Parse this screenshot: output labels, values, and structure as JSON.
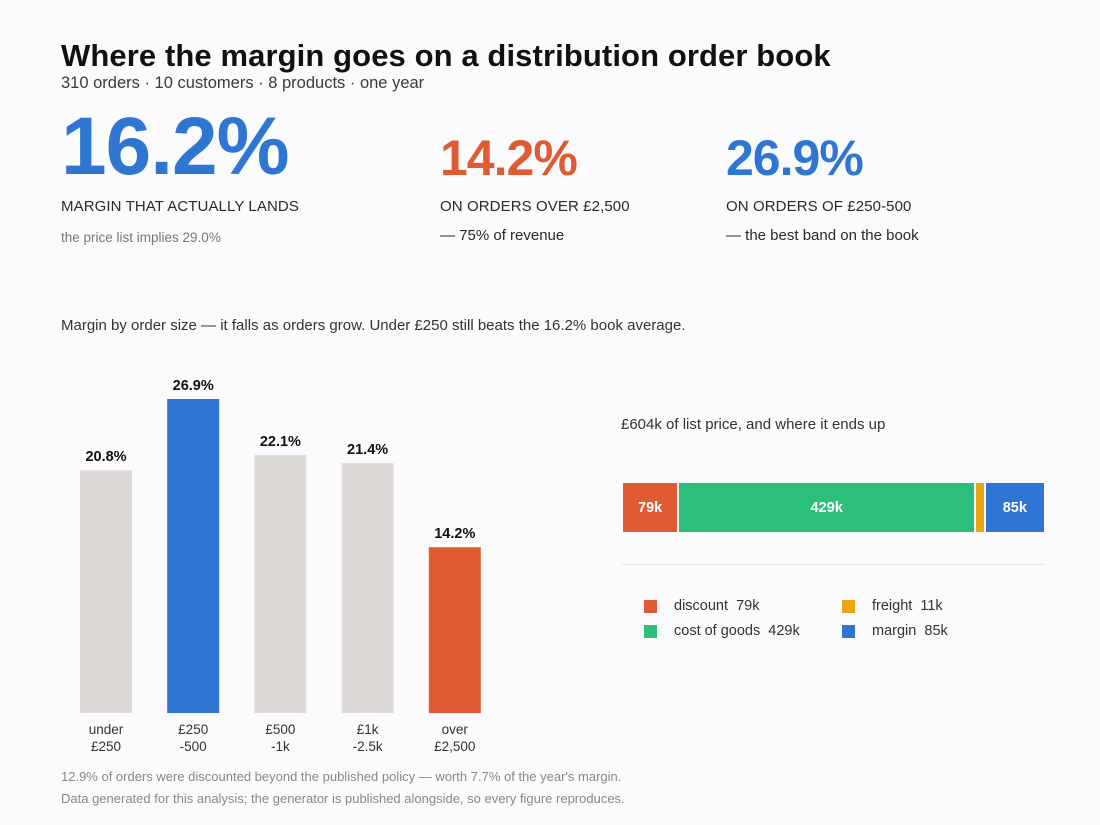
{
  "header": {
    "title": "Where the margin goes on a distribution order book",
    "subtitle": "310 orders · 10 customers · 8 products · one year"
  },
  "kpis": {
    "main": {
      "value": "16.2%",
      "label": "MARGIN THAT ACTUALLY LANDS",
      "note": "the price list implies 29.0%",
      "color": "#2f76d2"
    },
    "over": {
      "value": "14.2%",
      "label": "ON ORDERS OVER £2,500",
      "sub": "— 75% of revenue",
      "color": "#e05a33"
    },
    "best": {
      "value": "26.9%",
      "label": "ON ORDERS OF £250-500",
      "sub": "— the best band on the book",
      "color": "#2f76d2"
    }
  },
  "caption": "Margin by order size — it falls as orders grow. Under £250 still beats the 16.2% book average.",
  "stack": {
    "title": "£604k of list price, and where it ends up"
  },
  "legend": [
    {
      "label": "discount  79k",
      "color": "#e05a33"
    },
    {
      "label": "freight  11k",
      "color": "#e8a614"
    },
    {
      "label": "cost of goods  429k",
      "color": "#2bbf7a"
    },
    {
      "label": "margin  85k",
      "color": "#2f76d2"
    }
  ],
  "footer": {
    "line1": "12.9% of orders were discounted beyond the published policy — worth 7.7% of the year's margin.",
    "line2": "Data generated for this analysis; the generator is published alongside, so every figure reproduces."
  },
  "chart_data": [
    {
      "type": "bar",
      "categories": [
        [
          "under",
          "£250"
        ],
        [
          "£250",
          "-500"
        ],
        [
          "£500",
          "-1k"
        ],
        [
          "£1k",
          "-2.5k"
        ],
        [
          "over",
          "£2,500"
        ]
      ],
      "values": [
        20.8,
        26.9,
        22.1,
        21.4,
        14.2
      ],
      "data_labels": [
        "20.8%",
        "26.9%",
        "22.1%",
        "21.4%",
        "14.2%"
      ],
      "colors": [
        "#dddad7",
        "#2f76d2",
        "#dddad7",
        "#dddad7",
        "#e05a33"
      ],
      "ylim": [
        0,
        26.9
      ]
    },
    {
      "type": "bar",
      "orientation": "horizontal-stacked",
      "total": 604,
      "series": [
        {
          "name": "discount",
          "value": 79,
          "label": "79k",
          "color": "#e05a33"
        },
        {
          "name": "cost of goods",
          "value": 429,
          "label": "429k",
          "color": "#2bbf7a"
        },
        {
          "name": "freight",
          "value": 11,
          "label": "",
          "color": "#e8a614"
        },
        {
          "name": "margin",
          "value": 85,
          "label": "85k",
          "color": "#2f76d2"
        }
      ]
    }
  ]
}
